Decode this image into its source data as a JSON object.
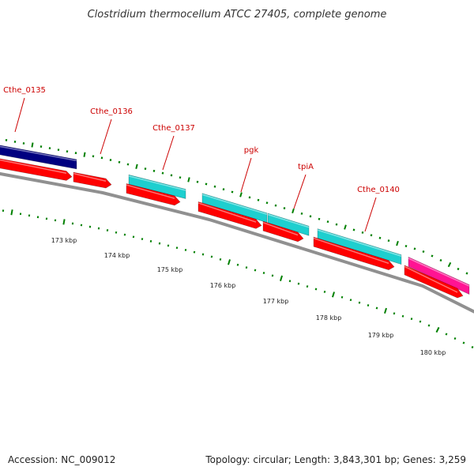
{
  "title": "Clostridium thermocellum ATCC 27405, complete genome",
  "footer": {
    "accession": "Accession: NC_009012",
    "summary": "Topology: circular; Length: 3,843,301 bp; Genes: 3,259"
  },
  "gene_labels": [
    "Cthe_0135",
    "Cthe_0136",
    "Cthe_0137",
    "pgk",
    "tpiA",
    "Cthe_0140"
  ],
  "scale_labels": [
    "173 kbp",
    "174 kbp",
    "175 kbp",
    "176 kbp",
    "177 kbp",
    "178 kbp",
    "179 kbp",
    "180 kbp"
  ],
  "colors": {
    "backbone": "#808080",
    "cds_red": "#ff0000",
    "cyan_feature": "#1ecfcf",
    "navy_feature": "#000080",
    "magenta_feature": "#ff1493",
    "tick_green": "#008000",
    "label_red": "#cc0000"
  }
}
